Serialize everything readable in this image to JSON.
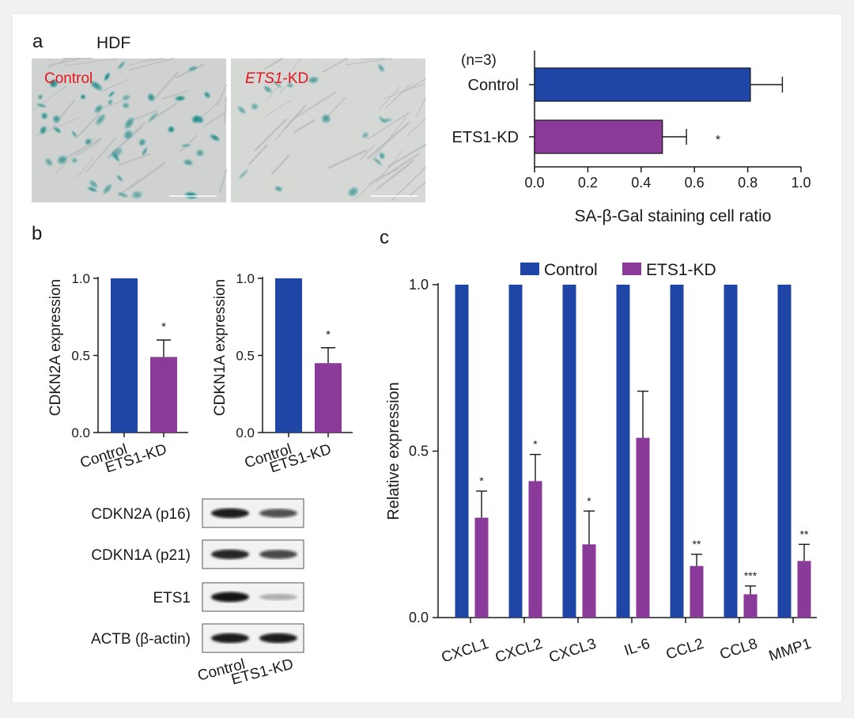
{
  "panels": {
    "a": "a",
    "b": "b",
    "c": "c"
  },
  "micrographs": {
    "cell_line": "HDF",
    "left_label": "Control",
    "right_label_italic": "ETS1",
    "right_label_suffix": "-KD",
    "stain_color": "#1f8b8c",
    "label_color": "#e8141c"
  },
  "colors": {
    "control": "#1f46a6",
    "ets1kd": "#8a3a98"
  },
  "chart_data": [
    {
      "id": "sa_beta_gal",
      "type": "bar",
      "orientation": "horizontal",
      "annotation": "(n=3)",
      "categories": [
        "Control",
        "ETS1-KD"
      ],
      "values": [
        0.81,
        0.48
      ],
      "errors": [
        0.12,
        0.09
      ],
      "significance": [
        "",
        "*"
      ],
      "xlim": [
        0,
        1
      ],
      "xticks": [
        "0.0",
        "0.2",
        "0.4",
        "0.6",
        "0.8",
        "1.0"
      ],
      "xlabel": "SA-β-Gal staining cell ratio"
    },
    {
      "id": "cdkn2a",
      "type": "bar",
      "categories": [
        "Control",
        "ETS1-KD"
      ],
      "values": [
        1.0,
        0.49
      ],
      "errors": [
        0,
        0.11
      ],
      "significance": [
        "",
        "*"
      ],
      "ylim": [
        0,
        1
      ],
      "yticks": [
        "0.0",
        "0.5",
        "1.0"
      ],
      "ylabel": "CDKN2A expression"
    },
    {
      "id": "cdkn1a",
      "type": "bar",
      "categories": [
        "Control",
        "ETS1-KD"
      ],
      "values": [
        1.0,
        0.45
      ],
      "errors": [
        0,
        0.1
      ],
      "significance": [
        "",
        "*"
      ],
      "ylim": [
        0,
        1
      ],
      "yticks": [
        "0.0",
        "0.5",
        "1.0"
      ],
      "ylabel": "CDKN1A expression"
    },
    {
      "id": "relative_expression",
      "type": "bar",
      "legend": [
        "Control",
        "ETS1-KD"
      ],
      "legend_position": "top",
      "categories": [
        "CXCL1",
        "CXCL2",
        "CXCL3",
        "IL-6",
        "CCL2",
        "CCL8",
        "MMP1"
      ],
      "series": [
        {
          "name": "Control",
          "values": [
            1,
            1,
            1,
            1,
            1,
            1,
            1
          ]
        },
        {
          "name": "ETS1-KD",
          "values": [
            0.3,
            0.41,
            0.22,
            0.54,
            0.155,
            0.07,
            0.17
          ]
        }
      ],
      "errors": [
        0.08,
        0.08,
        0.1,
        0.14,
        0.035,
        0.025,
        0.05
      ],
      "significance": [
        "*",
        "*",
        "*",
        "",
        "**",
        "***",
        "**"
      ],
      "ylim": [
        0,
        1
      ],
      "yticks": [
        "0.0",
        "0.5",
        "1.0"
      ],
      "ylabel": "Relative expression"
    }
  ],
  "western_blot": {
    "rows": [
      "CDKN2A (p16)",
      "CDKN1A (p21)",
      "ETS1",
      "ACTB (β-actin)"
    ],
    "lanes": [
      "Control",
      "ETS1-KD"
    ],
    "intensity": [
      [
        0.9,
        0.6
      ],
      [
        0.85,
        0.65
      ],
      [
        0.95,
        0.06
      ],
      [
        0.9,
        0.9
      ]
    ]
  }
}
